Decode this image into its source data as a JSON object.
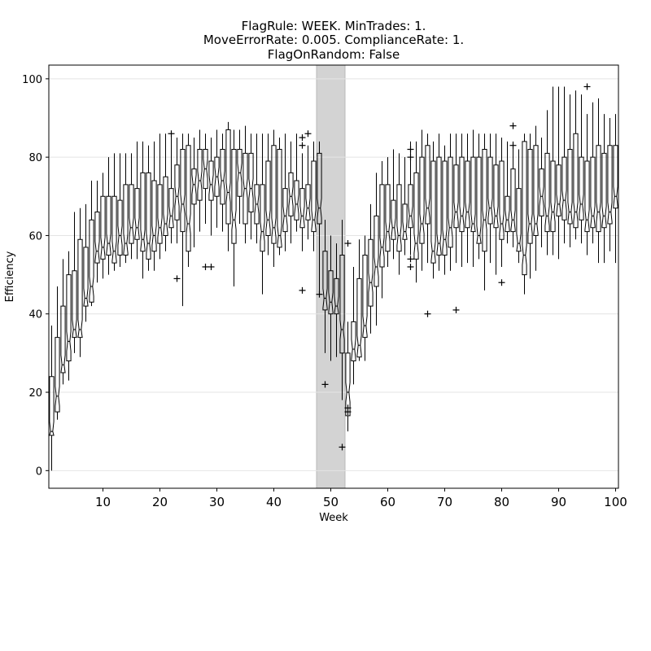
{
  "chart_data": {
    "type": "box",
    "title": [
      "FlagRule: WEEK. MinTrades: 1.",
      "MoveErrorRate: 0.005. ComplianceRate: 1.",
      "FlagOnRandom: False"
    ],
    "xlabel": "Week",
    "ylabel": "Efficiency",
    "xlim": [
      0.5,
      100.5
    ],
    "ylim": [
      -4.5,
      103.5
    ],
    "x_ticks": [
      10,
      20,
      30,
      40,
      50,
      60,
      70,
      80,
      90,
      100
    ],
    "y_ticks": [
      0,
      20,
      40,
      60,
      80,
      100
    ],
    "grid": true,
    "notched": true,
    "shaded_region": {
      "x_start": 47.5,
      "x_end": 52.5,
      "color": "#d3d3d3"
    },
    "box_color": "#000000",
    "weeks": [
      1,
      2,
      3,
      4,
      5,
      6,
      7,
      8,
      9,
      10,
      11,
      12,
      13,
      14,
      15,
      16,
      17,
      18,
      19,
      20,
      21,
      22,
      23,
      24,
      25,
      26,
      27,
      28,
      29,
      30,
      31,
      32,
      33,
      34,
      35,
      36,
      37,
      38,
      39,
      40,
      41,
      42,
      43,
      44,
      45,
      46,
      47,
      48,
      49,
      50,
      51,
      52,
      53,
      54,
      55,
      56,
      57,
      58,
      59,
      60,
      61,
      62,
      63,
      64,
      65,
      66,
      67,
      68,
      69,
      70,
      71,
      72,
      73,
      74,
      75,
      76,
      77,
      78,
      79,
      80,
      81,
      82,
      83,
      84,
      85,
      86,
      87,
      88,
      89,
      90,
      91,
      92,
      93,
      94,
      95,
      96,
      97,
      98,
      99,
      100
    ],
    "boxes": [
      [
        0,
        9,
        10,
        24,
        37
      ],
      [
        13,
        15,
        19,
        34,
        47
      ],
      [
        22,
        25,
        27,
        42,
        54
      ],
      [
        23,
        28,
        33,
        50,
        56
      ],
      [
        30,
        34,
        36,
        51,
        66
      ],
      [
        29,
        34,
        36,
        59,
        67
      ],
      [
        38,
        42,
        44,
        57,
        68
      ],
      [
        42,
        43,
        47,
        64,
        74
      ],
      [
        48,
        53,
        56,
        66,
        74
      ],
      [
        49,
        54,
        57,
        70,
        76
      ],
      [
        50,
        55,
        58,
        70,
        80
      ],
      [
        51,
        53,
        56,
        70,
        81
      ],
      [
        52,
        55,
        60,
        69,
        81
      ],
      [
        53,
        55,
        58,
        73,
        81
      ],
      [
        54,
        58,
        62,
        73,
        81
      ],
      [
        54,
        59,
        62,
        72,
        84
      ],
      [
        49,
        56,
        59,
        76,
        84
      ],
      [
        51,
        54,
        58,
        76,
        83
      ],
      [
        51,
        56,
        60,
        74,
        84
      ],
      [
        54,
        58,
        62,
        73,
        86
      ],
      [
        56,
        60,
        63,
        75,
        86
      ],
      [
        58,
        62,
        65,
        72,
        86
      ],
      [
        58,
        64,
        70,
        78,
        85
      ],
      [
        42,
        61,
        68,
        82,
        86
      ],
      [
        52,
        56,
        63,
        83,
        86
      ],
      [
        57,
        68,
        73,
        77,
        85
      ],
      [
        61,
        69,
        74,
        82,
        87
      ],
      [
        63,
        72,
        77,
        82,
        86
      ],
      [
        60,
        69,
        73,
        79,
        85
      ],
      [
        62,
        70,
        75,
        80,
        87
      ],
      [
        61,
        68,
        74,
        82,
        86
      ],
      [
        56,
        63,
        71,
        87,
        89
      ],
      [
        47,
        58,
        64,
        82,
        87
      ],
      [
        63,
        70,
        76,
        82,
        87
      ],
      [
        58,
        63,
        72,
        81,
        88
      ],
      [
        59,
        66,
        72,
        81,
        86
      ],
      [
        58,
        63,
        68,
        73,
        86
      ],
      [
        45,
        56,
        61,
        73,
        86
      ],
      [
        55,
        60,
        64,
        79,
        86
      ],
      [
        52,
        58,
        62,
        83,
        87
      ],
      [
        55,
        57,
        60,
        82,
        85
      ],
      [
        56,
        61,
        65,
        72,
        86
      ],
      [
        58,
        65,
        70,
        76,
        84
      ],
      [
        61,
        64,
        68,
        74,
        86
      ],
      [
        56,
        62,
        65,
        72,
        81
      ],
      [
        59,
        64,
        67,
        73,
        83
      ],
      [
        56,
        61,
        64,
        79,
        84
      ],
      [
        45,
        63,
        67,
        81,
        84
      ],
      [
        30,
        41,
        44,
        56,
        64
      ],
      [
        28,
        40,
        43,
        51,
        60
      ],
      [
        29,
        40,
        42,
        49,
        58
      ],
      [
        18,
        30,
        36,
        55,
        64
      ],
      [
        10,
        14,
        20,
        30,
        38
      ],
      [
        22,
        28,
        31,
        38,
        52
      ],
      [
        28,
        29,
        32,
        49,
        59
      ],
      [
        28,
        34,
        37,
        55,
        60
      ],
      [
        35,
        42,
        48,
        59,
        68
      ],
      [
        37,
        47,
        52,
        65,
        76
      ],
      [
        44,
        52,
        57,
        73,
        79
      ],
      [
        52,
        56,
        61,
        73,
        80
      ],
      [
        54,
        59,
        62,
        69,
        82
      ],
      [
        50,
        56,
        60,
        73,
        81
      ],
      [
        55,
        59,
        61,
        68,
        80
      ],
      [
        55,
        62,
        65,
        73,
        84
      ],
      [
        48,
        54,
        58,
        76,
        84
      ],
      [
        51,
        58,
        63,
        80,
        87
      ],
      [
        53,
        63,
        67,
        83,
        86
      ],
      [
        49,
        53,
        56,
        79,
        84
      ],
      [
        51,
        55,
        58,
        80,
        86
      ],
      [
        50,
        55,
        59,
        79,
        83
      ],
      [
        51,
        57,
        62,
        80,
        86
      ],
      [
        53,
        62,
        66,
        78,
        86
      ],
      [
        52,
        61,
        65,
        80,
        86
      ],
      [
        53,
        62,
        66,
        79,
        86
      ],
      [
        52,
        61,
        63,
        80,
        87
      ],
      [
        54,
        58,
        60,
        80,
        86
      ],
      [
        46,
        56,
        64,
        82,
        86
      ],
      [
        53,
        63,
        67,
        80,
        86
      ],
      [
        50,
        62,
        65,
        78,
        86
      ],
      [
        52,
        59,
        63,
        79,
        85
      ],
      [
        58,
        61,
        64,
        70,
        84
      ],
      [
        57,
        61,
        64,
        77,
        84
      ],
      [
        53,
        56,
        58,
        72,
        82
      ],
      [
        45,
        50,
        55,
        84,
        86
      ],
      [
        49,
        58,
        63,
        82,
        86
      ],
      [
        51,
        60,
        63,
        83,
        88
      ],
      [
        57,
        65,
        70,
        77,
        85
      ],
      [
        55,
        61,
        65,
        81,
        92
      ],
      [
        55,
        61,
        66,
        79,
        98
      ],
      [
        54,
        65,
        68,
        78,
        98
      ],
      [
        58,
        64,
        69,
        80,
        98
      ],
      [
        57,
        63,
        66,
        82,
        96
      ],
      [
        59,
        62,
        66,
        86,
        97
      ],
      [
        58,
        64,
        68,
        80,
        96
      ],
      [
        55,
        61,
        64,
        79,
        91
      ],
      [
        58,
        62,
        65,
        80,
        94
      ],
      [
        53,
        61,
        66,
        83,
        95
      ],
      [
        53,
        62,
        65,
        81,
        91
      ],
      [
        56,
        63,
        66,
        83,
        90
      ],
      [
        53,
        67,
        70,
        83,
        91
      ]
    ],
    "outliers": [
      [
        22,
        86
      ],
      [
        23,
        49
      ],
      [
        28,
        52
      ],
      [
        29,
        52
      ],
      [
        45,
        46
      ],
      [
        45,
        83
      ],
      [
        45,
        85
      ],
      [
        46,
        86
      ],
      [
        48,
        45
      ],
      [
        49,
        22
      ],
      [
        52,
        6
      ],
      [
        53,
        58
      ],
      [
        53,
        15
      ],
      [
        53,
        16
      ],
      [
        64,
        80
      ],
      [
        64,
        82
      ],
      [
        64,
        54
      ],
      [
        64,
        52
      ],
      [
        67,
        40
      ],
      [
        72,
        41
      ],
      [
        80,
        48
      ],
      [
        82,
        88
      ],
      [
        82,
        83
      ],
      [
        95,
        98
      ]
    ]
  }
}
